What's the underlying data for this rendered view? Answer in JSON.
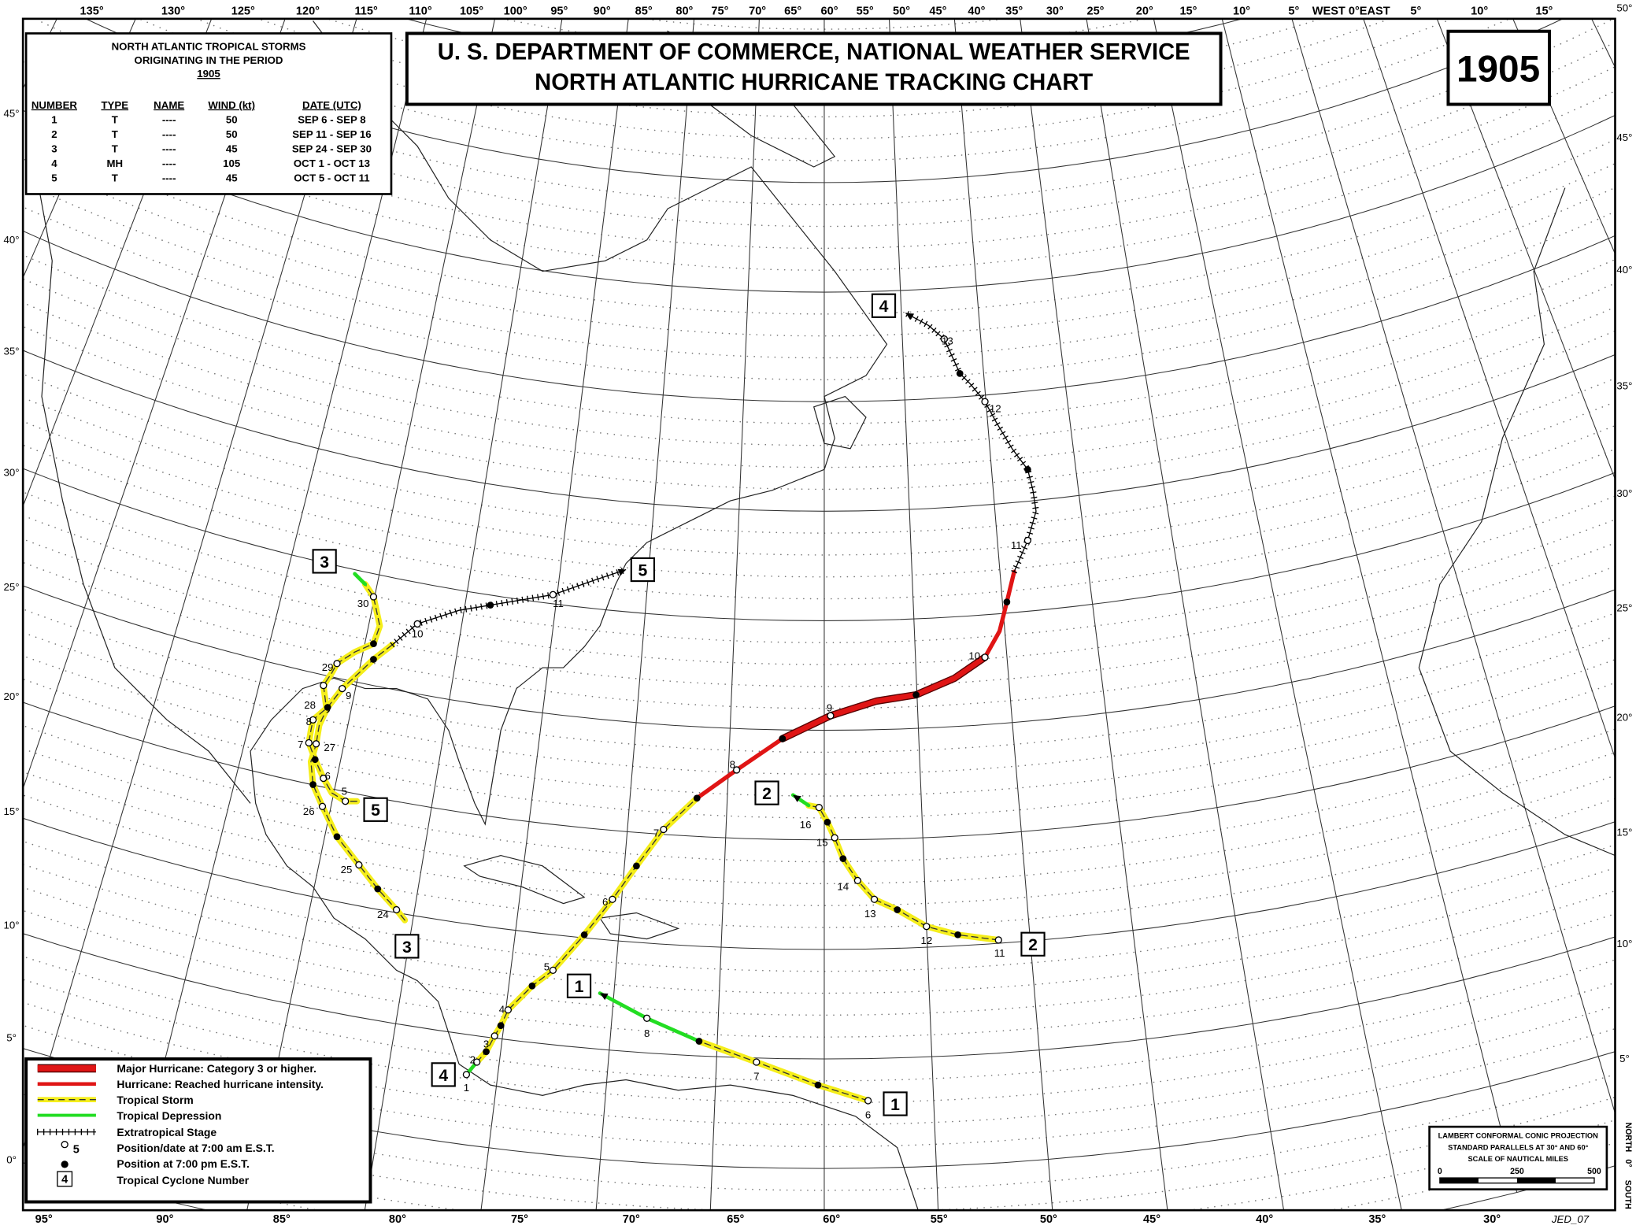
{
  "header": {
    "title_lines": [
      "U. S. DEPARTMENT OF COMMERCE, NATIONAL WEATHER SERVICE",
      "NORTH ATLANTIC HURRICANE TRACKING CHART"
    ],
    "year": "1905"
  },
  "storm_table": {
    "title_lines": [
      "NORTH ATLANTIC TROPICAL STORMS",
      "ORIGINATING IN THE PERIOD",
      "1905"
    ],
    "columns": [
      "NUMBER",
      "TYPE",
      "NAME",
      "WIND (kt)",
      "DATE (UTC)"
    ],
    "rows": [
      [
        "1",
        "T",
        "----",
        "50",
        "SEP  6 - SEP  8"
      ],
      [
        "2",
        "T",
        "----",
        "50",
        "SEP 11 - SEP 16"
      ],
      [
        "3",
        "T",
        "----",
        "45",
        "SEP 24 - SEP 30"
      ],
      [
        "4",
        "MH",
        "----",
        "105",
        "OCT  1 - OCT 13"
      ],
      [
        "5",
        "T",
        "----",
        "45",
        "OCT  5 - OCT 11"
      ]
    ]
  },
  "legend": {
    "items": [
      "Major Hurricane: Category 3 or higher.",
      "Hurricane: Reached hurricane intensity.",
      "Tropical Storm",
      "Tropical Depression",
      "Extratropical Stage",
      "Position/date at 7:00 am E.S.T.",
      "Position at 7:00 pm E.S.T.",
      "Tropical Cyclone Number"
    ],
    "position_icon_label": "5",
    "number_icon_label": "4"
  },
  "projection_note": {
    "lines": [
      "LAMBERT CONFORMAL CONIC PROJECTION",
      "STANDARD PARALLELS AT 30° AND 60°",
      "SCALE OF NAUTICAL MILES"
    ],
    "scale_ticks": [
      "0",
      "250",
      "500"
    ]
  },
  "north_south": [
    "NORTH",
    "0°",
    "SOUTH"
  ],
  "credit": "JED_07",
  "top_longitudes": [
    "135°",
    "130°",
    "125°",
    "120°",
    "115°",
    "110°",
    "105°",
    "100°",
    "95°",
    "90°",
    "85°",
    "80°",
    "75°",
    "70°",
    "65°",
    "60°",
    "55°",
    "50°",
    "45°",
    "40°",
    "35°",
    "30°",
    "25°",
    "20°",
    "15°",
    "10°",
    "5°",
    "WEST 0°EAST",
    "5°",
    "10°",
    "15°"
  ],
  "bottom_longitudes": [
    "95°",
    "90°",
    "85°",
    "80°",
    "75°",
    "70°",
    "65°",
    "60°",
    "55°",
    "50°",
    "45°",
    "40°",
    "35°",
    "30°"
  ],
  "left_latitudes": [
    "45°",
    "40°",
    "35°",
    "30°",
    "25°",
    "20°",
    "15°",
    "10°",
    "5°",
    "0°"
  ],
  "right_latitudes": [
    "50°",
    "45°",
    "40°",
    "35°",
    "30°",
    "25°",
    "20°",
    "15°",
    "10°",
    "5°"
  ],
  "storms": [
    {
      "number": "1",
      "dates": [
        "6",
        "7",
        "8"
      ]
    },
    {
      "number": "2",
      "dates": [
        "11",
        "12",
        "13",
        "14",
        "15",
        "16"
      ]
    },
    {
      "number": "3",
      "dates": [
        "24",
        "25",
        "26",
        "27",
        "28",
        "29",
        "30"
      ]
    },
    {
      "number": "4",
      "dates": [
        "1",
        "2",
        "3",
        "4",
        "5",
        "6",
        "7",
        "8",
        "9",
        "10",
        "11",
        "12",
        "13"
      ]
    },
    {
      "number": "5",
      "dates": [
        "5",
        "6",
        "7",
        "8",
        "9",
        "10",
        "11"
      ]
    }
  ]
}
